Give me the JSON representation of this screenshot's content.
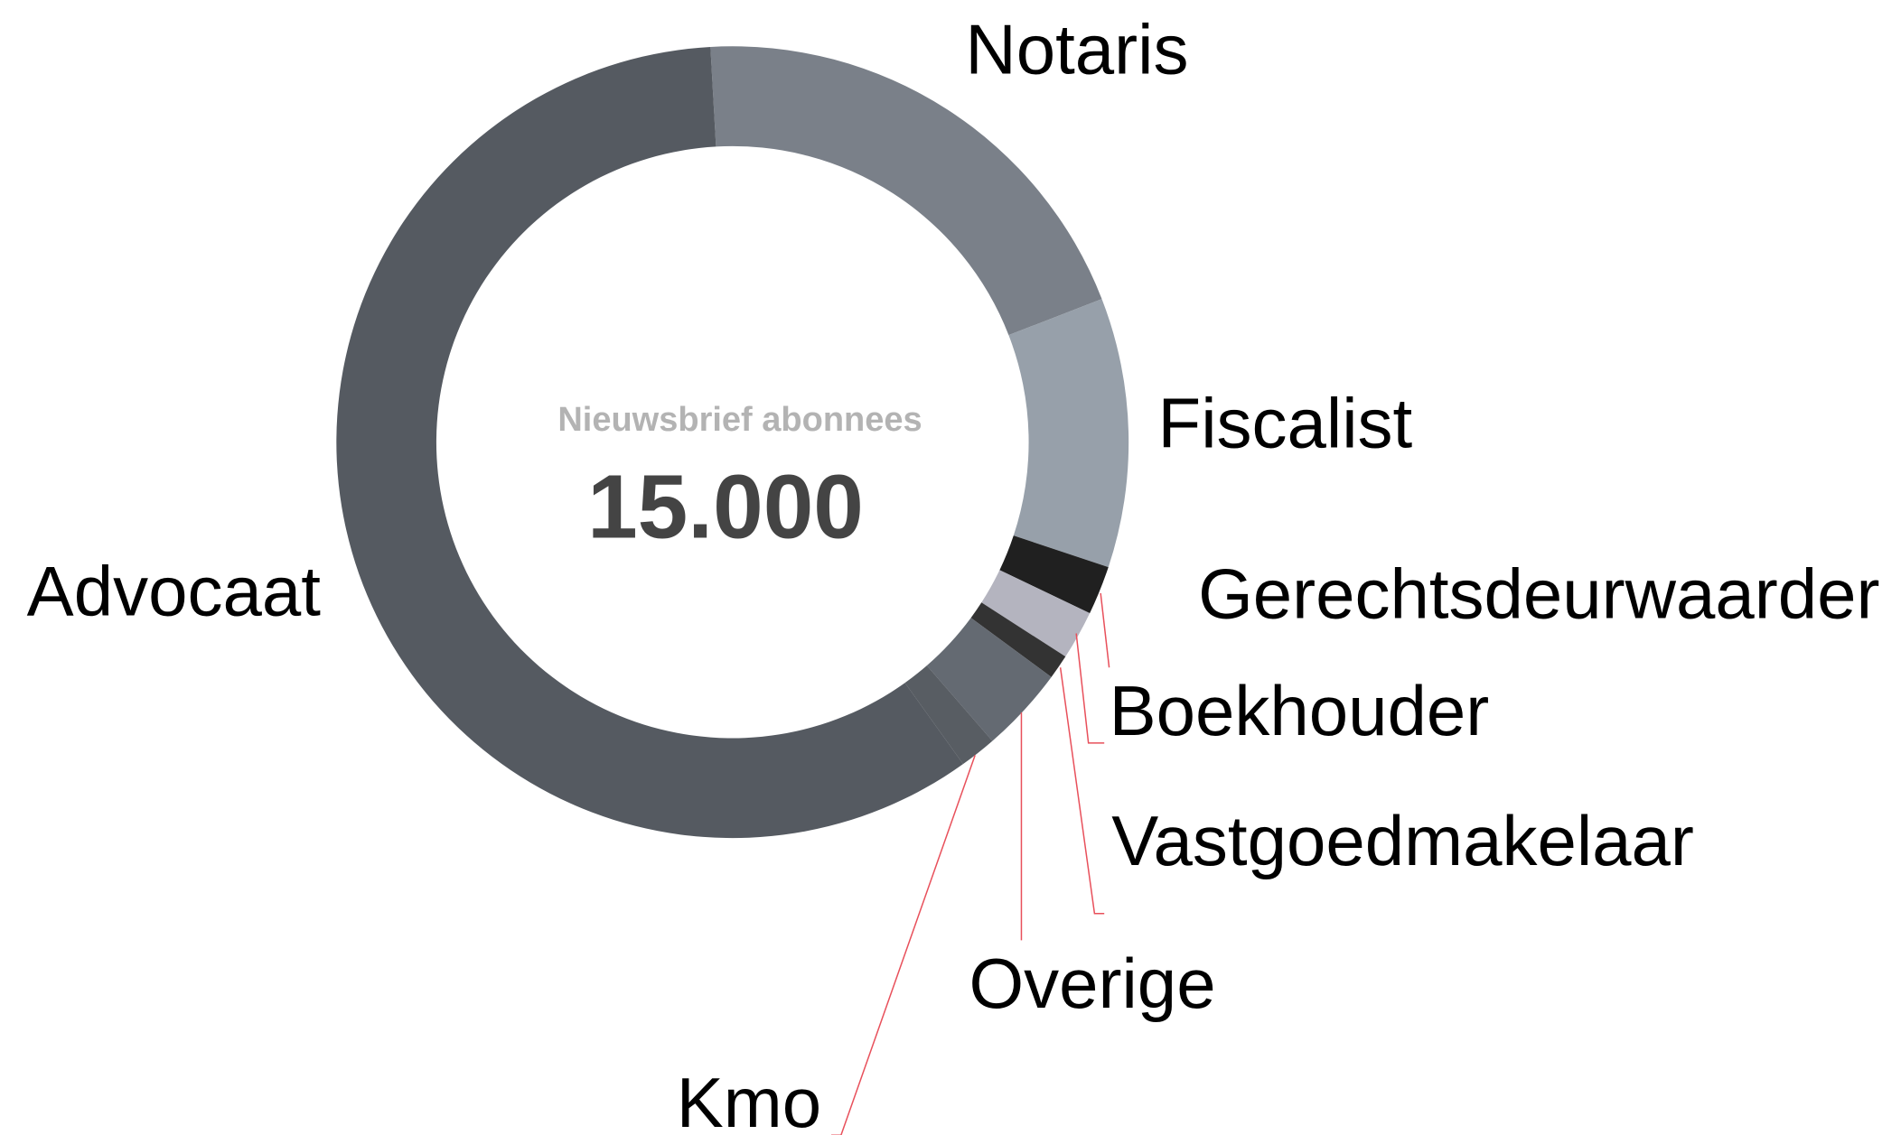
{
  "chart_data": {
    "type": "pie",
    "center_label": "Nieuwsbrief abonnees",
    "center_value": "15.000",
    "categories": [
      "Notaris",
      "Fiscalist",
      "Gerechtsdeurwaarder",
      "Boekhouder",
      "Vastgoedmakelaar",
      "Overige",
      "Kmo",
      "Advocaat"
    ],
    "values": [
      20,
      11,
      2,
      2,
      1,
      3.5,
      1.5,
      59
    ],
    "colors": [
      "#7a8089",
      "#97a0aa",
      "#202020",
      "#b4b4bf",
      "#333333",
      "#646a72",
      "#585d63",
      "#555a61"
    ]
  }
}
